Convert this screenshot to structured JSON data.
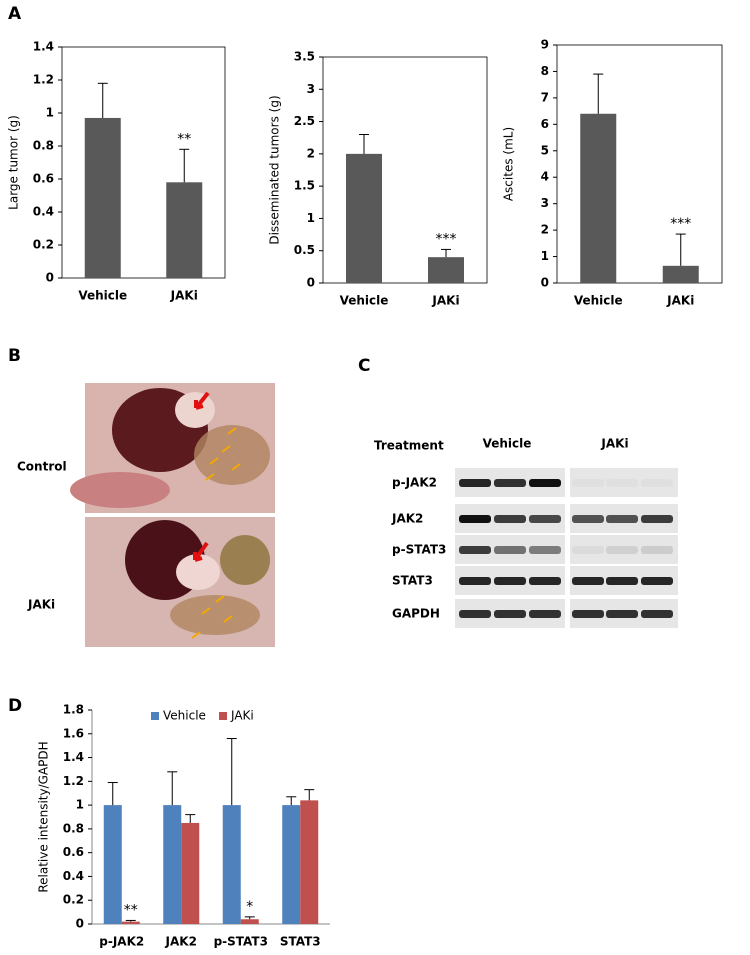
{
  "panel_labels": [
    "A",
    "B",
    "C",
    "D"
  ],
  "chart_data": [
    {
      "type": "bar",
      "y_label": "Large tumor (g)",
      "categories": [
        "Vehicle",
        "JAKi"
      ],
      "values": [
        0.97,
        0.58
      ],
      "errors": [
        0.21,
        0.2
      ],
      "significance": [
        null,
        "**"
      ],
      "color": "#595959",
      "ylim": [
        0,
        1.4
      ],
      "yticks": [
        0,
        0.2,
        0.4,
        0.6,
        0.8,
        1,
        1.2,
        1.4
      ]
    },
    {
      "type": "bar",
      "y_label": "Disseminated tumors (g)",
      "categories": [
        "Vehicle",
        "JAKi"
      ],
      "values": [
        2.0,
        0.4
      ],
      "errors": [
        0.3,
        0.12
      ],
      "significance": [
        null,
        "***"
      ],
      "color": "#595959",
      "ylim": [
        0,
        3.5
      ],
      "yticks": [
        0,
        0.5,
        1,
        1.5,
        2,
        2.5,
        3,
        3.5
      ]
    },
    {
      "type": "bar",
      "y_label": "Ascites (mL)",
      "categories": [
        "Vehicle",
        "JAKi"
      ],
      "values": [
        6.4,
        0.65
      ],
      "errors": [
        1.5,
        1.2
      ],
      "significance": [
        null,
        "***"
      ],
      "color": "#595959",
      "ylim": [
        0,
        9
      ],
      "yticks": [
        0,
        1,
        2,
        3,
        4,
        5,
        6,
        7,
        8,
        9
      ]
    },
    {
      "type": "bar",
      "y_label": "Relative intensity/GAPDH",
      "categories": [
        "p-JAK2",
        "JAK2",
        "p-STAT3",
        "STAT3"
      ],
      "series": [
        {
          "name": "Vehicle",
          "color": "#4f81bd",
          "values": [
            1,
            1,
            1,
            1
          ],
          "errors": [
            0.19,
            0.28,
            0.56,
            0.07
          ]
        },
        {
          "name": "JAKi",
          "color": "#c0504d",
          "values": [
            0.02,
            0.85,
            0.04,
            1.04
          ],
          "errors": [
            0.01,
            0.07,
            0.02,
            0.09
          ],
          "significance": [
            "**",
            null,
            "*",
            null
          ]
        }
      ],
      "ylim": [
        0,
        1.8
      ],
      "yticks": [
        0,
        0.2,
        0.4,
        0.6,
        0.8,
        1,
        1.2,
        1.4,
        1.6,
        1.8
      ],
      "legend": "top"
    }
  ],
  "photo": {
    "labels": [
      "Control",
      "JAKi"
    ]
  },
  "blot": {
    "treatment_label": "Treatment",
    "groups": [
      "Vehicle",
      "JAKi"
    ],
    "rows": [
      "p-JAK2",
      "JAK2",
      "p-STAT3",
      "STAT3",
      "GAPDH"
    ]
  }
}
